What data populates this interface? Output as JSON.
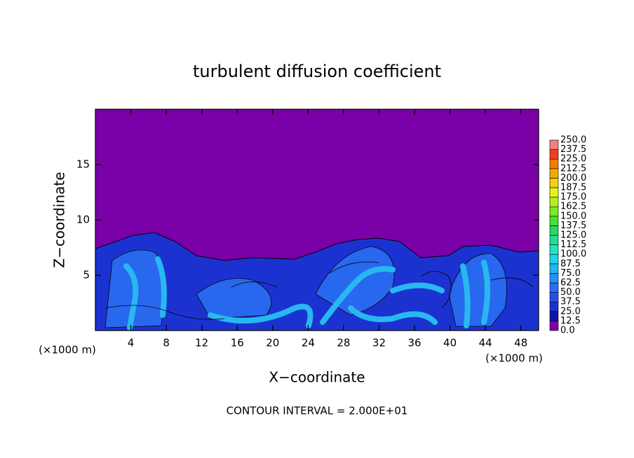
{
  "chart_data": {
    "type": "contour",
    "title": "turbulent diffusion coefficient",
    "xlabel": "X−coordinate",
    "ylabel": "Z−coordinate",
    "x_unit_labels": [
      "(×1000 m)",
      "(×1000 m)"
    ],
    "annotation": "CONTOUR INTERVAL = 2.000E+01",
    "xlim": [
      0,
      50
    ],
    "xticks": [
      4,
      8,
      12,
      16,
      20,
      24,
      28,
      32,
      36,
      40,
      44,
      48
    ],
    "ylim": [
      0,
      20
    ],
    "yticks": [
      5,
      10,
      15
    ],
    "colorbar": {
      "levels": [
        {
          "value": 0,
          "label": "0.0"
        },
        12.5,
        {
          "value": 25,
          "label": "25.0"
        },
        37.5,
        {
          "value": 50,
          "label": "50.0"
        },
        62.5,
        {
          "value": 75,
          "label": "75.0"
        },
        87.5,
        {
          "value": 100,
          "label": "100.0"
        },
        112.5,
        {
          "value": 125,
          "label": "125.0"
        },
        137.5,
        {
          "value": 150,
          "label": "150.0"
        },
        162.5,
        {
          "value": 175,
          "label": "175.0"
        },
        187.5,
        {
          "value": 200,
          "label": "200.0"
        },
        212.5,
        {
          "value": 225,
          "label": "225.0"
        },
        237.5,
        {
          "value": 250,
          "label": "250.0"
        }
      ],
      "colors": [
        "#7a00a8",
        "#1212a8",
        "#1c32d0",
        "#2450e8",
        "#2a6ef2",
        "#2890f2",
        "#22b4f0",
        "#20d4e8",
        "#20e4c0",
        "#22e090",
        "#2cd860",
        "#48e030",
        "#78ec20",
        "#b0f020",
        "#e8f020",
        "#f4d010",
        "#f4a800",
        "#f47c00",
        "#f04020",
        "#f08080"
      ]
    }
  }
}
